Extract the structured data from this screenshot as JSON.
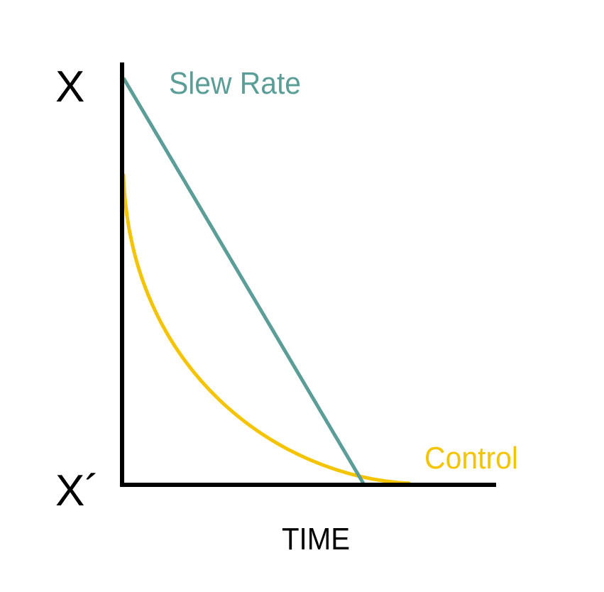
{
  "labels": {
    "y_top": "X",
    "y_bottom": "X´",
    "x_axis": "TIME"
  },
  "curves": [
    {
      "label": "Slew Rate"
    },
    {
      "label": "Control"
    }
  ]
}
